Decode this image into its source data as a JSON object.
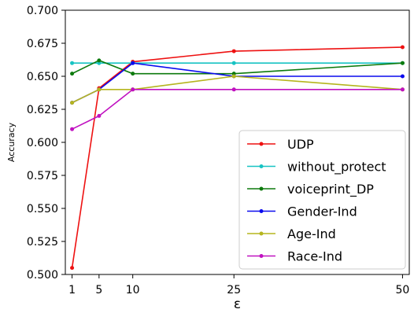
{
  "chart_data": {
    "type": "line",
    "title": "",
    "xlabel": "ε",
    "ylabel": "Accuracy",
    "x": [
      1,
      5,
      10,
      25,
      50
    ],
    "xticks": [
      "1",
      "5",
      "10",
      "25",
      "50"
    ],
    "xlim": [
      0,
      51
    ],
    "ylim": [
      0.5,
      0.7
    ],
    "yticks": [
      "0.500",
      "0.525",
      "0.550",
      "0.575",
      "0.600",
      "0.625",
      "0.650",
      "0.675",
      "0.700"
    ],
    "grid": false,
    "legend_position": "lower-right",
    "series": [
      {
        "name": "UDP",
        "color": "#ee1111",
        "values": [
          0.505,
          0.641,
          0.661,
          0.669,
          0.672
        ]
      },
      {
        "name": "without_protect",
        "color": "#17c3c3",
        "values": [
          0.66,
          0.66,
          0.66,
          0.66,
          0.66
        ]
      },
      {
        "name": "voiceprint_DP",
        "color": "#0d7a0d",
        "values": [
          0.652,
          0.662,
          0.652,
          0.652,
          0.66
        ]
      },
      {
        "name": "Gender-Ind",
        "color": "#0a0aee",
        "values": [
          0.63,
          0.64,
          0.66,
          0.65,
          0.65
        ]
      },
      {
        "name": "Age-Ind",
        "color": "#b5b51e",
        "values": [
          0.63,
          0.64,
          0.64,
          0.65,
          0.64
        ]
      },
      {
        "name": "Race-Ind",
        "color": "#c012c0",
        "values": [
          0.61,
          0.62,
          0.64,
          0.64,
          0.64
        ]
      }
    ]
  }
}
